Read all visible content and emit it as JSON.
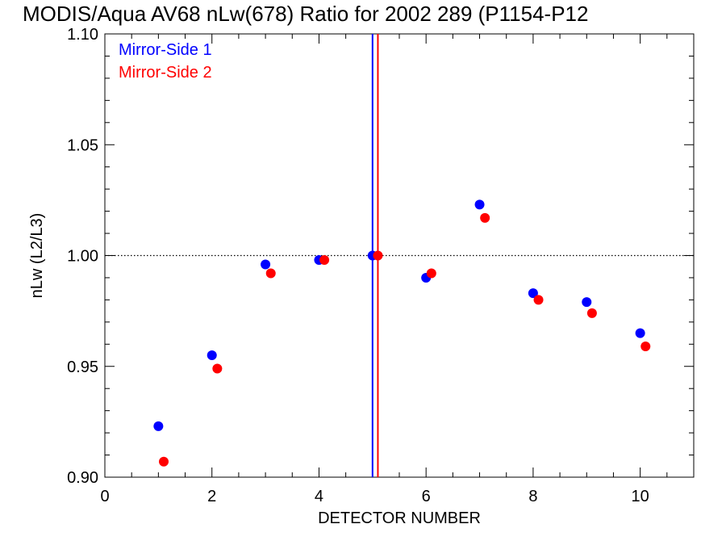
{
  "chart_data": {
    "type": "scatter",
    "title": "MODIS/Aqua AV68 nLw(678) Ratio for 2002 289 (P1154-P12",
    "xlabel": "DETECTOR NUMBER",
    "ylabel": "nLw (L2/L3)",
    "xlim": [
      0,
      11
    ],
    "ylim": [
      0.9,
      1.1
    ],
    "x_ticks": [
      0,
      2,
      4,
      6,
      8,
      10
    ],
    "x_tick_labels": [
      "0",
      "2",
      "4",
      "6",
      "8",
      "10"
    ],
    "y_ticks": [
      0.9,
      0.95,
      1.0,
      1.05,
      1.1
    ],
    "y_tick_labels": [
      "0.90",
      "0.95",
      "1.00",
      "1.05",
      "1.10"
    ],
    "reference_line": {
      "y": 1.0,
      "style": "dotted",
      "color": "#000000"
    },
    "vertical_lines": [
      {
        "x": 5.0,
        "color": "#0000ff"
      },
      {
        "x": 5.1,
        "color": "#ff0000"
      }
    ],
    "legend_position": "top-left",
    "grid": false,
    "series": [
      {
        "name": "Mirror-Side 1",
        "color": "#0000ff",
        "x": [
          1,
          2,
          3,
          4,
          5,
          6,
          7,
          8,
          9,
          10
        ],
        "y": [
          0.923,
          0.955,
          0.996,
          0.998,
          1.0,
          0.99,
          1.023,
          0.983,
          0.979,
          0.965
        ]
      },
      {
        "name": "Mirror-Side 2",
        "color": "#ff0000",
        "x": [
          1.1,
          2.1,
          3.1,
          4.1,
          5.1,
          6.1,
          7.1,
          8.1,
          9.1,
          10.1
        ],
        "y": [
          0.907,
          0.949,
          0.992,
          0.998,
          1.0,
          0.992,
          1.017,
          0.98,
          0.974,
          0.959
        ]
      }
    ]
  }
}
